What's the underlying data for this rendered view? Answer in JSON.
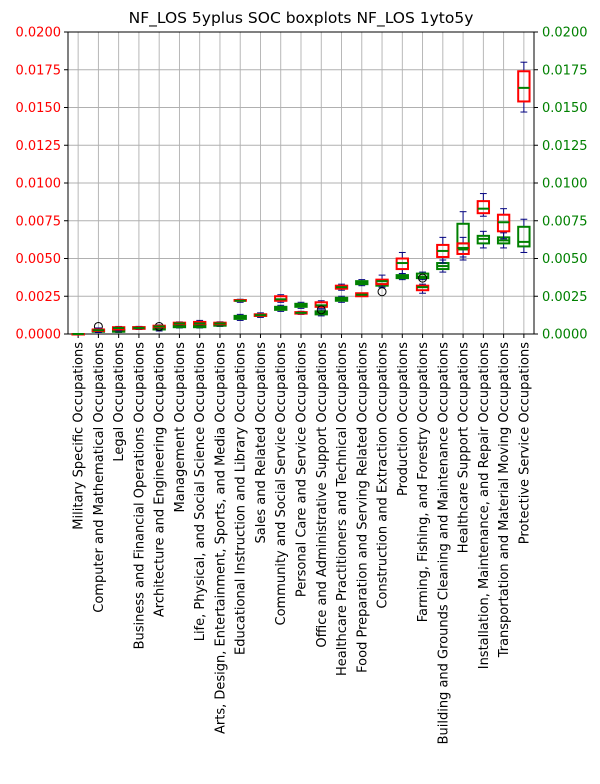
{
  "chart_data": {
    "type": "boxplot",
    "title": "NF_LOS 5yplus SOC boxplots NF_LOS 1yto5y",
    "xlabel": "",
    "ylabel": "",
    "ylim": [
      0,
      0.02
    ],
    "yticks": [
      "0.0000",
      "0.0025",
      "0.0050",
      "0.0075",
      "0.0100",
      "0.0125",
      "0.0150",
      "0.0175",
      "0.0200"
    ],
    "grid": true,
    "colors": {
      "left_axis": "#ff0000",
      "right_axis": "#008000",
      "series_5yplus": "#ff0000",
      "series_1yto5y": "#008000",
      "median": "#008000",
      "whisker": "#000080"
    },
    "categories": [
      "Military Specific Occupations",
      "Computer and Mathematical Occupations",
      "Legal Occupations",
      "Business and Financial Operations Occupations",
      "Architecture and Engineering Occupations",
      "Management Occupations",
      "Life, Physical, and Social Science Occupations",
      "Arts, Design, Entertainment, Sports, and Media Occupations",
      "Educational Instruction and Library Occupations",
      "Sales and Related Occupations",
      "Community and Social Service Occupations",
      "Personal Care and Service Occupations",
      "Office and Administrative Support Occupations",
      "Healthcare Practitioners and Technical Occupations",
      "Food Preparation and Serving Related Occupations",
      "Construction and Extraction Occupations",
      "Production Occupations",
      "Farming, Fishing, and Forestry Occupations",
      "Building and Grounds Cleaning and Maintenance Occupations",
      "Healthcare Support Occupations",
      "Installation, Maintenance, and Repair Occupations",
      "Transportation and Material Moving Occupations",
      "Protective Service Occupations"
    ],
    "series": [
      {
        "name": "NF_LOS 5yplus",
        "boxes": [
          {
            "whislo": 0.0,
            "q1": 0.0,
            "med": 0.0,
            "q3": 0.0,
            "whishi": 0.0,
            "fliers": []
          },
          {
            "whislo": 0.0001,
            "q1": 0.0002,
            "med": 0.00025,
            "q3": 0.0003,
            "whishi": 0.0004,
            "fliers": []
          },
          {
            "whislo": 0.0002,
            "q1": 0.0003,
            "med": 0.0004,
            "q3": 0.00045,
            "whishi": 0.0005,
            "fliers": []
          },
          {
            "whislo": 0.0003,
            "q1": 0.00035,
            "med": 0.0004,
            "q3": 0.00045,
            "whishi": 0.0005,
            "fliers": []
          },
          {
            "whislo": 0.0004,
            "q1": 0.00045,
            "med": 0.0005,
            "q3": 0.00055,
            "whishi": 0.0006,
            "fliers": []
          },
          {
            "whislo": 0.0006,
            "q1": 0.00065,
            "med": 0.0007,
            "q3": 0.00075,
            "whishi": 0.0008,
            "fliers": []
          },
          {
            "whislo": 0.0006,
            "q1": 0.00065,
            "med": 0.0007,
            "q3": 0.0008,
            "whishi": 0.0009,
            "fliers": []
          },
          {
            "whislo": 0.0006,
            "q1": 0.00065,
            "med": 0.0007,
            "q3": 0.00075,
            "whishi": 0.0008,
            "fliers": []
          },
          {
            "whislo": 0.0021,
            "q1": 0.0022,
            "med": 0.0022,
            "q3": 0.00225,
            "whishi": 0.0023,
            "fliers": []
          },
          {
            "whislo": 0.0012,
            "q1": 0.0012,
            "med": 0.00125,
            "q3": 0.0013,
            "whishi": 0.0013,
            "fliers": []
          },
          {
            "whislo": 0.0021,
            "q1": 0.0022,
            "med": 0.0023,
            "q3": 0.0025,
            "whishi": 0.0026,
            "fliers": []
          },
          {
            "whislo": 0.0013,
            "q1": 0.00135,
            "med": 0.0014,
            "q3": 0.00145,
            "whishi": 0.0015,
            "fliers": []
          },
          {
            "whislo": 0.0017,
            "q1": 0.0018,
            "med": 0.0019,
            "q3": 0.0021,
            "whishi": 0.0022,
            "fliers": [
              0.0016
            ]
          },
          {
            "whislo": 0.0029,
            "q1": 0.003,
            "med": 0.0031,
            "q3": 0.0032,
            "whishi": 0.0033,
            "fliers": []
          },
          {
            "whislo": 0.0025,
            "q1": 0.0025,
            "med": 0.0026,
            "q3": 0.0027,
            "whishi": 0.0027,
            "fliers": []
          },
          {
            "whislo": 0.0031,
            "q1": 0.0033,
            "med": 0.0035,
            "q3": 0.0036,
            "whishi": 0.0039,
            "fliers": [
              0.0028
            ]
          },
          {
            "whislo": 0.004,
            "q1": 0.0043,
            "med": 0.0047,
            "q3": 0.005,
            "whishi": 0.0054,
            "fliers": []
          },
          {
            "whislo": 0.0027,
            "q1": 0.0029,
            "med": 0.0031,
            "q3": 0.0032,
            "whishi": 0.0033,
            "fliers": [
              0.0037
            ]
          },
          {
            "whislo": 0.0047,
            "q1": 0.0051,
            "med": 0.0055,
            "q3": 0.0059,
            "whishi": 0.0064,
            "fliers": []
          },
          {
            "whislo": 0.0049,
            "q1": 0.0053,
            "med": 0.0057,
            "q3": 0.006,
            "whishi": 0.0064,
            "fliers": []
          },
          {
            "whislo": 0.0078,
            "q1": 0.008,
            "med": 0.0083,
            "q3": 0.0088,
            "whishi": 0.0093,
            "fliers": []
          },
          {
            "whislo": 0.0063,
            "q1": 0.0068,
            "med": 0.0074,
            "q3": 0.0079,
            "whishi": 0.0083,
            "fliers": []
          },
          {
            "whislo": 0.0147,
            "q1": 0.0154,
            "med": 0.0163,
            "q3": 0.0174,
            "whishi": 0.018,
            "fliers": []
          }
        ]
      },
      {
        "name": "NF_LOS 1yto5y",
        "boxes": [
          {
            "whislo": 0.0,
            "q1": 0.0,
            "med": 0.0,
            "q3": 0.0,
            "whishi": 0.0,
            "fliers": []
          },
          {
            "whislo": 0.0001,
            "q1": 0.00015,
            "med": 0.0002,
            "q3": 0.00025,
            "whishi": 0.0003,
            "fliers": [
              0.0005
            ]
          },
          {
            "whislo": 0.0001,
            "q1": 0.00015,
            "med": 0.0002,
            "q3": 0.00025,
            "whishi": 0.0003,
            "fliers": []
          },
          {
            "whislo": 0.0003,
            "q1": 0.00035,
            "med": 0.0004,
            "q3": 0.00045,
            "whishi": 0.0005,
            "fliers": []
          },
          {
            "whislo": 0.0002,
            "q1": 0.0003,
            "med": 0.0004,
            "q3": 0.00045,
            "whishi": 0.0005,
            "fliers": [
              0.0005
            ]
          },
          {
            "whislo": 0.0004,
            "q1": 0.00045,
            "med": 0.0005,
            "q3": 0.00055,
            "whishi": 0.0006,
            "fliers": []
          },
          {
            "whislo": 0.0004,
            "q1": 0.00045,
            "med": 0.0005,
            "q3": 0.0006,
            "whishi": 0.0007,
            "fliers": []
          },
          {
            "whislo": 0.0005,
            "q1": 0.00055,
            "med": 0.0006,
            "q3": 0.0007,
            "whishi": 0.0008,
            "fliers": []
          },
          {
            "whislo": 0.0009,
            "q1": 0.001,
            "med": 0.0011,
            "q3": 0.0012,
            "whishi": 0.0013,
            "fliers": []
          },
          {
            "whislo": 0.0011,
            "q1": 0.0012,
            "med": 0.00125,
            "q3": 0.0013,
            "whishi": 0.0014,
            "fliers": []
          },
          {
            "whislo": 0.0015,
            "q1": 0.0016,
            "med": 0.0017,
            "q3": 0.0018,
            "whishi": 0.0019,
            "fliers": []
          },
          {
            "whislo": 0.0017,
            "q1": 0.0018,
            "med": 0.0019,
            "q3": 0.002,
            "whishi": 0.0021,
            "fliers": []
          },
          {
            "whislo": 0.0012,
            "q1": 0.0013,
            "med": 0.0014,
            "q3": 0.0015,
            "whishi": 0.0016,
            "fliers": []
          },
          {
            "whislo": 0.0021,
            "q1": 0.0022,
            "med": 0.0023,
            "q3": 0.0024,
            "whishi": 0.0025,
            "fliers": []
          },
          {
            "whislo": 0.0032,
            "q1": 0.0033,
            "med": 0.0034,
            "q3": 0.0035,
            "whishi": 0.0036,
            "fliers": []
          },
          {
            "whislo": 0.0031,
            "q1": 0.0032,
            "med": 0.0033,
            "q3": 0.0035,
            "whishi": 0.0036,
            "fliers": []
          },
          {
            "whislo": 0.0036,
            "q1": 0.0037,
            "med": 0.0038,
            "q3": 0.0039,
            "whishi": 0.004,
            "fliers": []
          },
          {
            "whislo": 0.0036,
            "q1": 0.0037,
            "med": 0.0038,
            "q3": 0.004,
            "whishi": 0.0041,
            "fliers": []
          },
          {
            "whislo": 0.0041,
            "q1": 0.0043,
            "med": 0.0045,
            "q3": 0.0047,
            "whishi": 0.0049,
            "fliers": []
          },
          {
            "whislo": 0.0051,
            "q1": 0.0056,
            "med": 0.006,
            "q3": 0.0073,
            "whishi": 0.0081,
            "fliers": []
          },
          {
            "whislo": 0.0057,
            "q1": 0.006,
            "med": 0.0063,
            "q3": 0.0065,
            "whishi": 0.0068,
            "fliers": []
          },
          {
            "whislo": 0.0057,
            "q1": 0.006,
            "med": 0.0062,
            "q3": 0.0064,
            "whishi": 0.0067,
            "fliers": []
          },
          {
            "whislo": 0.0054,
            "q1": 0.0058,
            "med": 0.0061,
            "q3": 0.0071,
            "whishi": 0.0076,
            "fliers": []
          }
        ]
      }
    ]
  }
}
